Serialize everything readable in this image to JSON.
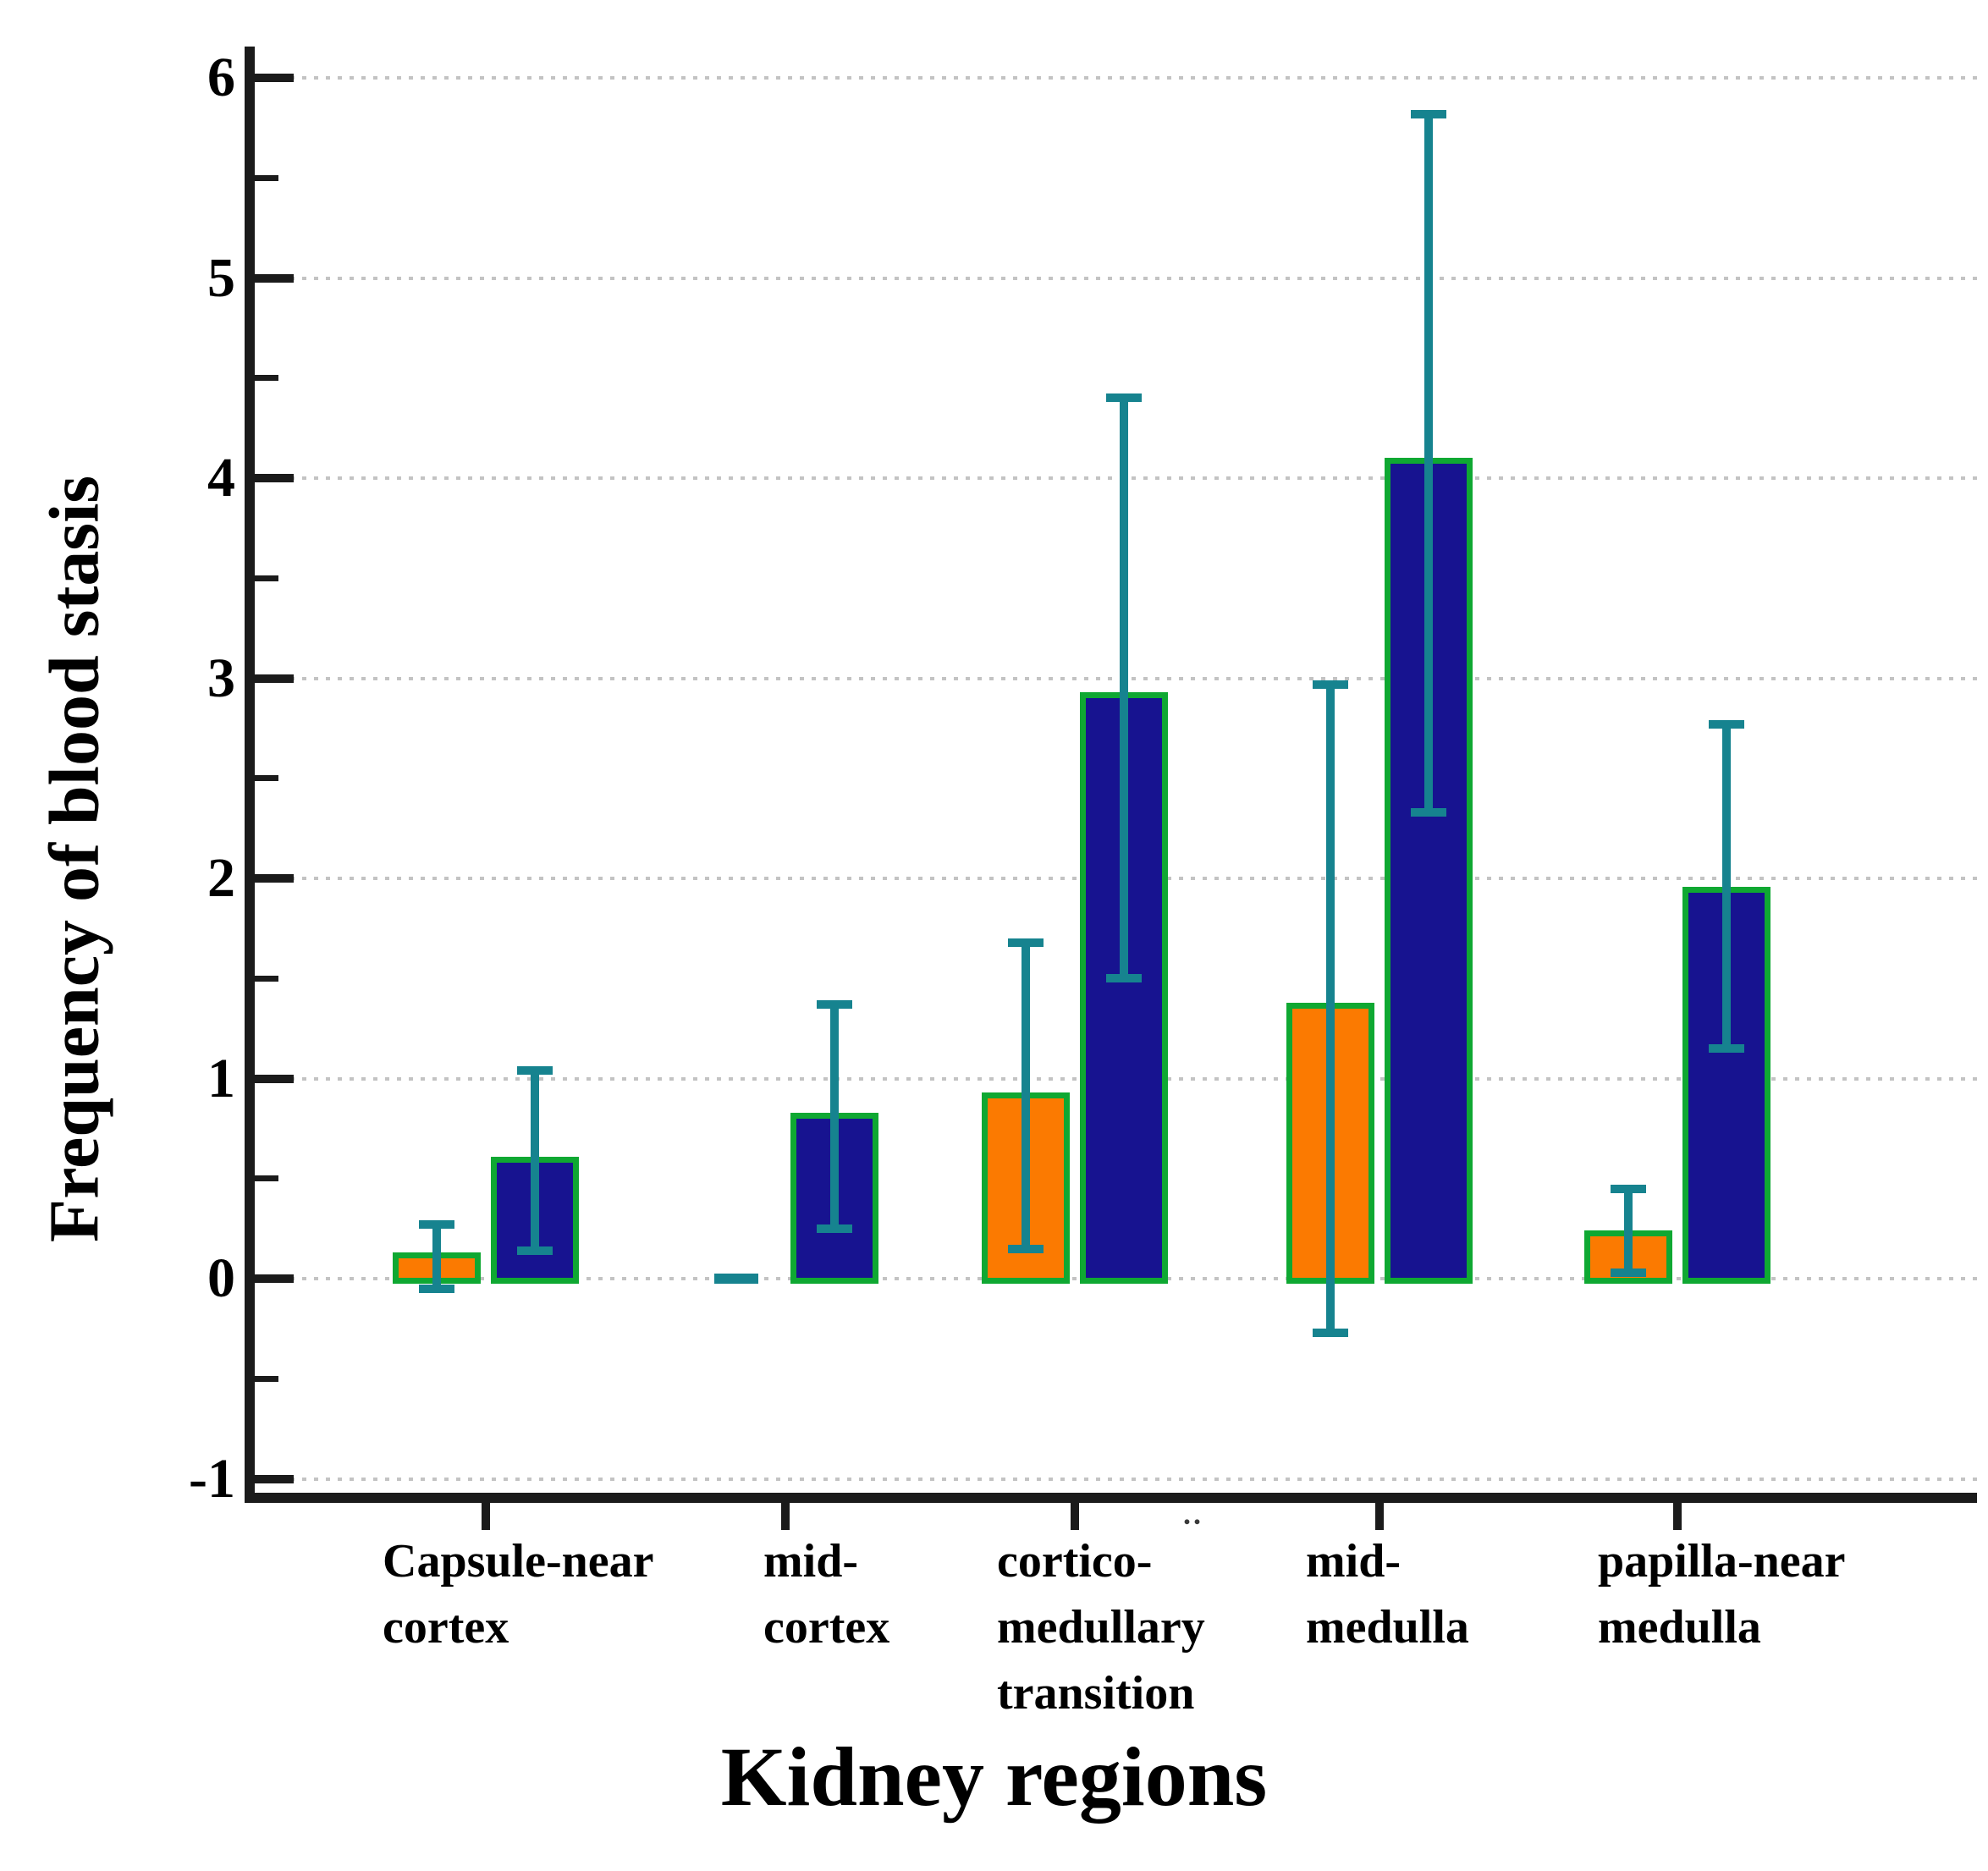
{
  "figure": {
    "y_axis": {
      "title": "Frequency of blood stasis",
      "tick_labels": [
        "6",
        "5",
        "4",
        "3",
        "2",
        "1",
        "0",
        "-1"
      ],
      "major_values": [
        6,
        5,
        4,
        3,
        2,
        1,
        0,
        -1
      ],
      "minor_values": [
        5.5,
        4.5,
        3.5,
        2.5,
        1.5,
        0.5,
        -0.5
      ],
      "range_shown": [
        -1.1,
        6.2
      ],
      "gridlines": "dotted"
    },
    "x_axis": {
      "title": "Kidney regions"
    },
    "artifact_dots": ".."
  },
  "colors": {
    "orange_fill": "#FB7A01",
    "navy_fill": "#171390",
    "bar_outline_green": "#0FA832",
    "error_bar_teal": "#16838F",
    "axis": "#1b1b1b",
    "gridline": "#c3c3c3",
    "text": "#000000",
    "background": "#ffffff"
  },
  "chart_data": {
    "type": "bar",
    "title": "",
    "xlabel": "Kidney regions",
    "ylabel": "Frequency of blood stasis",
    "ylim": [
      -1.1,
      6.2
    ],
    "grid": "dotted horizontal at integers",
    "legend": "none shown",
    "categories": [
      "Capsule-near cortex",
      "mid-cortex",
      "cortico-medullary transition",
      "mid-medulla",
      "papilla-near medulla"
    ],
    "category_lines": [
      [
        "Capsule-near",
        "cortex"
      ],
      [
        "mid-",
        "cortex"
      ],
      [
        "cortico-",
        "medullary",
        "transition"
      ],
      [
        "mid-",
        "medulla"
      ],
      [
        "papilla-near",
        "medulla"
      ]
    ],
    "series": [
      {
        "name": "orange",
        "color_key": "orange_fill",
        "values": [
          0.1,
          0,
          0.9,
          1.35,
          0.21
        ],
        "err_low": [
          -0.05,
          null,
          0.15,
          -0.27,
          0.03
        ],
        "err_high": [
          0.27,
          null,
          1.68,
          2.97,
          0.45
        ],
        "zero_marker_only": [
          false,
          true,
          false,
          false,
          false
        ]
      },
      {
        "name": "dark-blue",
        "color_key": "navy_fill",
        "values": [
          0.58,
          0.8,
          2.9,
          4.07,
          1.93
        ],
        "err_low": [
          0.14,
          0.25,
          1.5,
          2.33,
          1.15
        ],
        "err_high": [
          1.04,
          1.37,
          4.4,
          5.82,
          2.77
        ],
        "zero_marker_only": [
          false,
          false,
          false,
          false,
          false
        ]
      }
    ],
    "error_bar_style": "teal vertical line with flat caps, drawn over bars",
    "bar_outline": "green"
  }
}
